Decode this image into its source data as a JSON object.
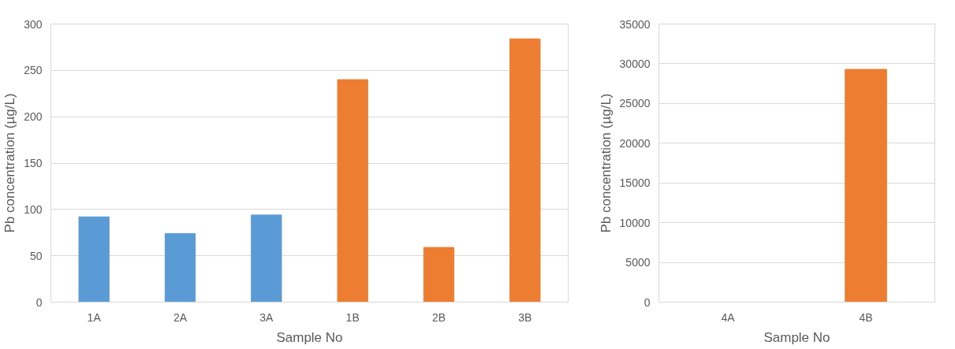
{
  "chart_data": [
    {
      "type": "bar",
      "xlabel": "Sample No",
      "ylabel": "Pb concentration (µg/L)",
      "categories": [
        "1A",
        "2A",
        "3A",
        "1B",
        "2B",
        "3B"
      ],
      "values": [
        92,
        74,
        94,
        240,
        59,
        284
      ],
      "colors": [
        "#5b9bd5",
        "#5b9bd5",
        "#5b9bd5",
        "#ed7d31",
        "#ed7d31",
        "#ed7d31"
      ],
      "ylim": [
        0,
        300
      ],
      "yticks": [
        0,
        50,
        100,
        150,
        200,
        250,
        300
      ],
      "grid": "y"
    },
    {
      "type": "bar",
      "xlabel": "Sample No",
      "ylabel": "Pb concentration (µg/L)",
      "categories": [
        "4A",
        "4B"
      ],
      "values": [
        0,
        29300
      ],
      "colors": [
        "#5b9bd5",
        "#ed7d31"
      ],
      "ylim": [
        0,
        35000
      ],
      "yticks": [
        0,
        5000,
        10000,
        15000,
        20000,
        25000,
        30000,
        35000
      ],
      "grid": "y"
    }
  ]
}
